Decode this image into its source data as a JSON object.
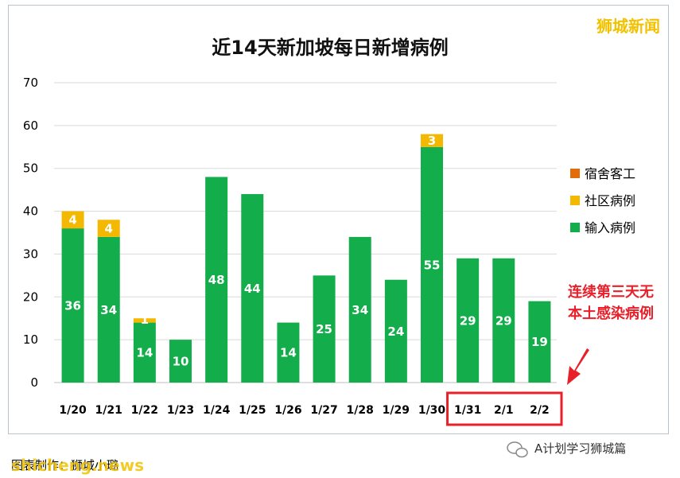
{
  "watermark_top": "狮城新闻",
  "caption": "图表制作：狮城小璐",
  "overlay_brand": "shicheng.news",
  "footer_brand": "A计划学习狮城篇",
  "annotation_lines": [
    "连续第三天无",
    "本土感染病例"
  ],
  "colors": {
    "dorm": "#e36c0a",
    "community": "#f5b800",
    "imported": "#14ad4b",
    "highlight": "#e8202a"
  },
  "chart_data": {
    "type": "bar",
    "stacked": true,
    "title": "近14天新加坡每日新增病例",
    "categories": [
      "1/20",
      "1/21",
      "1/22",
      "1/23",
      "1/24",
      "1/25",
      "1/26",
      "1/27",
      "1/28",
      "1/29",
      "1/30",
      "1/31",
      "2/1",
      "2/2"
    ],
    "series": [
      {
        "name": "输入病例",
        "color": "#14ad4b",
        "values": [
          36,
          34,
          14,
          10,
          48,
          44,
          14,
          25,
          34,
          24,
          55,
          29,
          29,
          19
        ]
      },
      {
        "name": "社区病例",
        "color": "#f5b800",
        "values": [
          4,
          4,
          1,
          0,
          0,
          0,
          0,
          0,
          0,
          0,
          3,
          0,
          0,
          0
        ]
      },
      {
        "name": "宿舍客工",
        "color": "#e36c0a",
        "values": [
          0,
          0,
          0,
          0,
          0,
          0,
          0,
          0,
          0,
          0,
          0,
          0,
          0,
          0
        ]
      }
    ],
    "legend_order": [
      "宿舍客工",
      "社区病例",
      "输入病例"
    ],
    "legend_position": "right",
    "ylim": [
      0,
      70
    ],
    "yticks": [
      0,
      10,
      20,
      30,
      40,
      50,
      60,
      70
    ],
    "grid": true,
    "highlighted_categories": [
      "1/31",
      "2/1",
      "2/2"
    ]
  }
}
